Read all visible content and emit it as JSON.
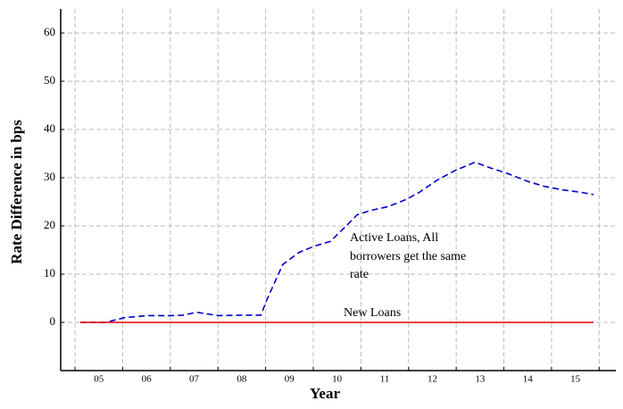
{
  "chart_data": {
    "type": "line",
    "x_label": "Year",
    "y_label": "Rate Difference in bps",
    "annotations": [
      "Active Loans, All",
      "borrowers get the same",
      "rate",
      "New Loans"
    ],
    "x": [
      5.11,
      5.64,
      6.05,
      6.52,
      6.99,
      7.27,
      7.55,
      8.01,
      8.48,
      8.9,
      9.04,
      9.36,
      9.7,
      10.02,
      10.36,
      10.64,
      10.92,
      11.2,
      11.57,
      11.95,
      12.23,
      12.6,
      12.98,
      13.39,
      13.73,
      14.1,
      14.48,
      14.85,
      15.22,
      15.6,
      15.88
    ],
    "series": [
      {
        "color": "#0000cc",
        "dashed": true,
        "values": [
          0,
          0,
          1,
          1.4,
          1.4,
          1.5,
          2.1,
          1.4,
          1.5,
          1.5,
          5,
          12,
          14.5,
          15.8,
          16.8,
          19.5,
          22.3,
          23.2,
          24,
          25.5,
          27,
          29.5,
          31.5,
          33.2,
          32,
          30.8,
          29.3,
          28.2,
          27.5,
          27,
          26.5
        ]
      },
      {
        "color": "#dd0000",
        "dashed": false,
        "values": [
          0,
          0,
          0,
          0,
          0,
          0,
          0,
          0,
          0,
          0,
          0,
          0,
          0,
          0,
          0,
          0,
          0,
          0,
          0,
          0,
          0,
          0,
          0,
          0,
          0,
          0,
          0,
          0,
          0,
          0,
          0
        ]
      }
    ],
    "xlim": [
      4.7,
      16.35
    ],
    "ylim": [
      -10,
      65
    ],
    "xticks": [
      {
        "value": 5.5,
        "label": "05"
      },
      {
        "value": 6.5,
        "label": "06"
      },
      {
        "value": 7.5,
        "label": "07"
      },
      {
        "value": 8.5,
        "label": "08"
      },
      {
        "value": 9.5,
        "label": "09"
      },
      {
        "value": 10.5,
        "label": "10"
      },
      {
        "value": 11.5,
        "label": "11"
      },
      {
        "value": 12.5,
        "label": "12"
      },
      {
        "value": 13.5,
        "label": "13"
      },
      {
        "value": 14.5,
        "label": "14"
      },
      {
        "value": 15.5,
        "label": "15"
      }
    ],
    "xminorticks": [
      5,
      6,
      7,
      8,
      9,
      10,
      11,
      12,
      13,
      14,
      15,
      16
    ],
    "yticks": [
      0,
      10,
      20,
      30,
      40,
      50,
      60
    ],
    "grid": true
  }
}
